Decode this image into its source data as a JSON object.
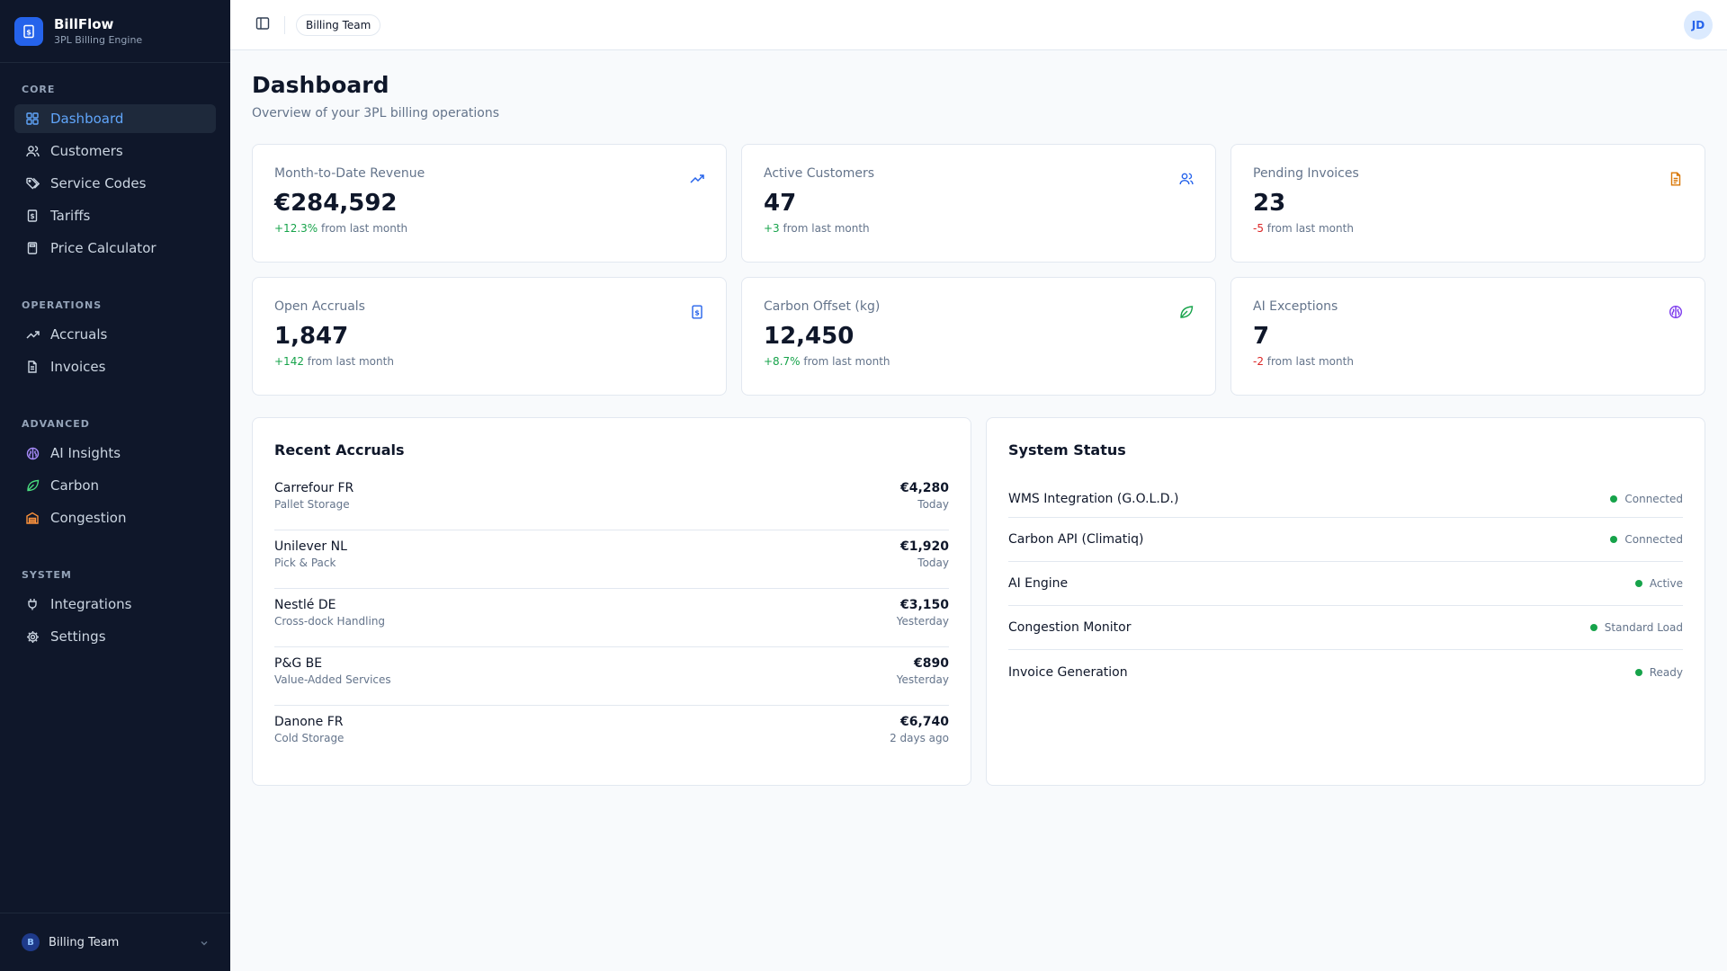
{
  "brand": {
    "name": "BillFlow",
    "subtitle": "3PL Billing Engine"
  },
  "sidebar": {
    "sections": [
      {
        "heading": "CORE",
        "items": [
          {
            "label": "Dashboard",
            "icon": "dashboard-grid-icon",
            "active": true
          },
          {
            "label": "Customers",
            "icon": "users-icon"
          },
          {
            "label": "Service Codes",
            "icon": "tags-icon"
          },
          {
            "label": "Tariffs",
            "icon": "receipt-icon"
          },
          {
            "label": "Price Calculator",
            "icon": "calculator-icon"
          }
        ]
      },
      {
        "heading": "OPERATIONS",
        "items": [
          {
            "label": "Accruals",
            "icon": "trending-up-icon"
          },
          {
            "label": "Invoices",
            "icon": "file-text-icon"
          }
        ]
      },
      {
        "heading": "ADVANCED",
        "items": [
          {
            "label": "AI Insights",
            "icon": "brain-icon"
          },
          {
            "label": "Carbon",
            "icon": "leaf-icon"
          },
          {
            "label": "Congestion",
            "icon": "warehouse-icon"
          }
        ]
      },
      {
        "heading": "SYSTEM",
        "items": [
          {
            "label": "Integrations",
            "icon": "plug-icon"
          },
          {
            "label": "Settings",
            "icon": "gear-icon"
          }
        ]
      }
    ],
    "footer": {
      "avatar": "B",
      "team": "Billing Team"
    }
  },
  "topbar": {
    "team_chip": "Billing Team",
    "user_initials": "JD"
  },
  "page": {
    "title": "Dashboard",
    "subtitle": "Overview of your 3PL billing operations"
  },
  "stats": [
    {
      "label": "Month-to-Date Revenue",
      "value": "€284,592",
      "delta": "+12.3%",
      "delta_suffix": " from last month",
      "trend": "positive",
      "icon": "trending-up-icon"
    },
    {
      "label": "Active Customers",
      "value": "47",
      "delta": "+3",
      "delta_suffix": " from last month",
      "trend": "positive",
      "icon": "users-icon"
    },
    {
      "label": "Pending Invoices",
      "value": "23",
      "delta": "-5",
      "delta_suffix": " from last month",
      "trend": "negative",
      "icon": "file-text-icon"
    },
    {
      "label": "Open Accruals",
      "value": "1,847",
      "delta": "+142",
      "delta_suffix": " from last month",
      "trend": "positive",
      "icon": "receipt-icon"
    },
    {
      "label": "Carbon Offset (kg)",
      "value": "12,450",
      "delta": "+8.7%",
      "delta_suffix": " from last month",
      "trend": "positive",
      "icon": "leaf-icon"
    },
    {
      "label": "AI Exceptions",
      "value": "7",
      "delta": "-2",
      "delta_suffix": " from last month",
      "trend": "negative",
      "icon": "brain-icon"
    }
  ],
  "recent_accruals": {
    "title": "Recent Accruals",
    "rows": [
      {
        "customer": "Carrefour FR",
        "service": "Pallet Storage",
        "amount": "€4,280",
        "when": "Today"
      },
      {
        "customer": "Unilever NL",
        "service": "Pick & Pack",
        "amount": "€1,920",
        "when": "Today"
      },
      {
        "customer": "Nestlé DE",
        "service": "Cross-dock Handling",
        "amount": "€3,150",
        "when": "Yesterday"
      },
      {
        "customer": "P&G BE",
        "service": "Value-Added Services",
        "amount": "€890",
        "when": "Yesterday"
      },
      {
        "customer": "Danone FR",
        "service": "Cold Storage",
        "amount": "€6,740",
        "when": "2 days ago"
      }
    ]
  },
  "system_status": {
    "title": "System Status",
    "rows": [
      {
        "name": "WMS Integration (G.O.L.D.)",
        "status": "Connected"
      },
      {
        "name": "Carbon API (Climatiq)",
        "status": "Connected"
      },
      {
        "name": "AI Engine",
        "status": "Active"
      },
      {
        "name": "Congestion Monitor",
        "status": "Standard Load"
      },
      {
        "name": "Invoice Generation",
        "status": "Ready"
      }
    ]
  },
  "colors": {
    "sidebar_bg": "#0f172a",
    "accent": "#2563eb",
    "positive": "#16a34a",
    "negative": "#dc2626",
    "status_dot": "#16a34a",
    "ai_purple": "#7c3aed",
    "carbon_green": "#16a34a",
    "congestion_orange": "#ea580c",
    "invoice_amber": "#d97706"
  }
}
